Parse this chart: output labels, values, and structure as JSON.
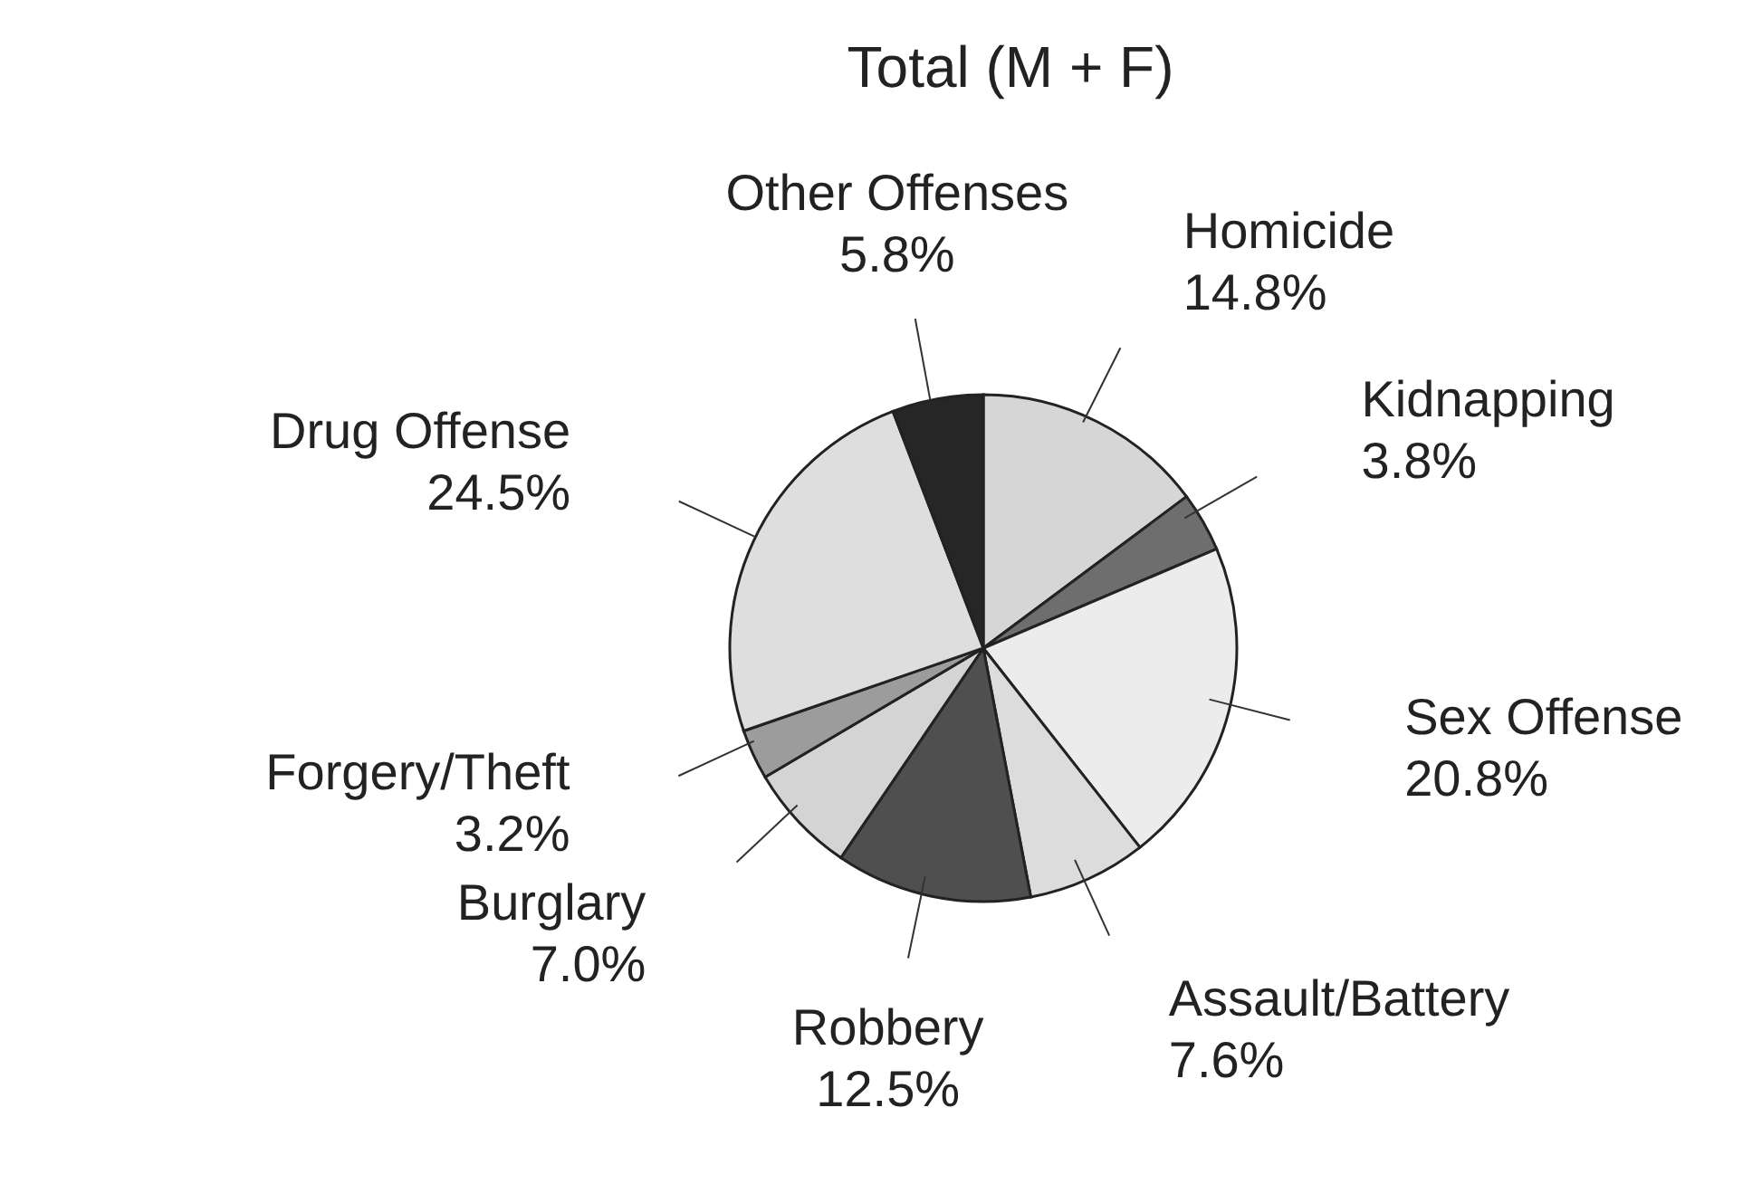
{
  "chart_data": {
    "type": "pie",
    "title": "Total (M + F)",
    "categories": [
      "Homicide",
      "Kidnapping",
      "Sex Offense",
      "Assault/Battery",
      "Robbery",
      "Burglary",
      "Forgery/Theft",
      "Drug Offense",
      "Other Offenses"
    ],
    "values": [
      14.8,
      3.8,
      20.8,
      7.6,
      12.5,
      7.0,
      3.2,
      24.5,
      5.8
    ],
    "value_labels": [
      "14.8%",
      "3.8%",
      "20.8%",
      "7.6%",
      "12.5%",
      "7.0%",
      "3.2%",
      "24.5%",
      "5.8%"
    ],
    "colors": [
      "#d6d6d6",
      "#6e6e6e",
      "#ececec",
      "#dcdcdc",
      "#4f4f4f",
      "#d4d4d4",
      "#9c9c9c",
      "#dedede",
      "#262626"
    ]
  }
}
